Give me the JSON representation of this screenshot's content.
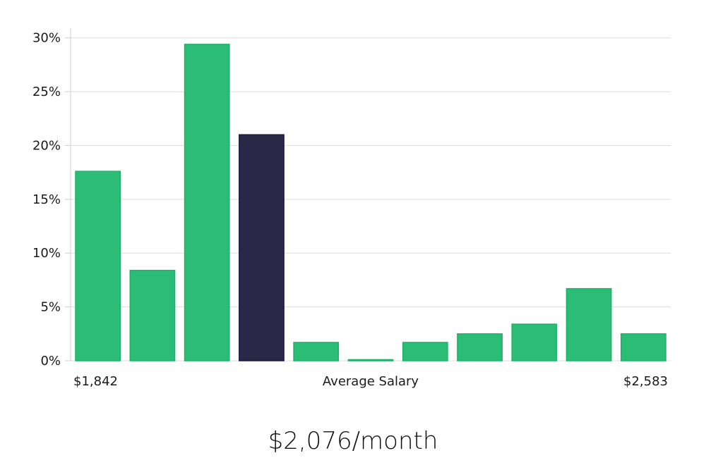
{
  "chart_data": {
    "type": "bar",
    "xlabel": "Average Salary",
    "x_start_label": "$1,842",
    "x_end_label": "$2,583",
    "y_ticks": [
      "0%",
      "5%",
      "10%",
      "15%",
      "20%",
      "25%",
      "30%"
    ],
    "ylim": [
      0,
      30.9
    ],
    "grid": true,
    "values": [
      17.6,
      8.4,
      29.4,
      21.0,
      1.7,
      0.1,
      1.7,
      2.5,
      3.4,
      6.7,
      2.5
    ],
    "highlight_index": 3,
    "colors": {
      "bar": "#2bbd76",
      "bar_stroke": "#20b06a",
      "highlight": "#2a2747",
      "highlight_stroke": "#1b1840",
      "grid": "#dddddd",
      "axis": "#cfcfcf"
    }
  },
  "headline": "$2,076/month"
}
